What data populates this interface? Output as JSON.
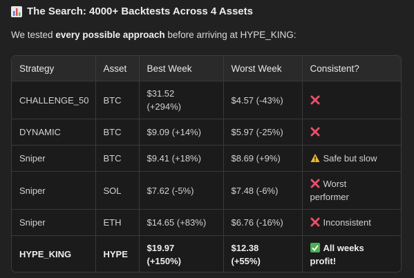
{
  "header": {
    "title": "The Search: 4000+ Backtests Across 4 Assets",
    "intro_start": "We tested",
    "intro_bold": "every possible approach",
    "intro_end": "before arriving at HYPE_KING:"
  },
  "table": {
    "columns": [
      "Strategy",
      "Asset",
      "Best Week",
      "Worst Week",
      "Consistent?"
    ],
    "rows": [
      {
        "strategy": "CHALLENGE_50",
        "asset": "BTC",
        "best": "$31.52",
        "best_change": "(+294%)",
        "worst": "$4.57",
        "worst_change": "(-43%)"
      },
      {
        "strategy": "DYNAMIC",
        "asset": "BTC",
        "best": "$9.09",
        "best_change": "(+14%)",
        "worst": "$5.97",
        "worst_change": "(-25%)"
      },
      {
        "strategy": "Sniper",
        "asset": "BTC",
        "best": "$9.41",
        "best_change": "(+18%)",
        "worst": "$8.69",
        "worst_change": "(+9%)",
        "consistent": "Safe but slow"
      },
      {
        "strategy": "Sniper",
        "asset": "SOL",
        "best": "$7.62",
        "best_change": "(-5%)",
        "worst": "$7.48",
        "worst_change": "(-6%)",
        "consistent": "Worst performer"
      },
      {
        "strategy": "Sniper",
        "asset": "ETH",
        "best": "$14.65",
        "best_change": "(+83%)",
        "worst": "$6.76",
        "worst_change": "(-16%)",
        "consistent": "Inconsistent"
      },
      {
        "strategy": "HYPE_KING",
        "asset": "HYPE",
        "best": "$19.97",
        "best_change": "(+150%)",
        "worst": "$12.38",
        "worst_change": "(+55%)",
        "consistent": "All weeks profit!"
      }
    ]
  }
}
